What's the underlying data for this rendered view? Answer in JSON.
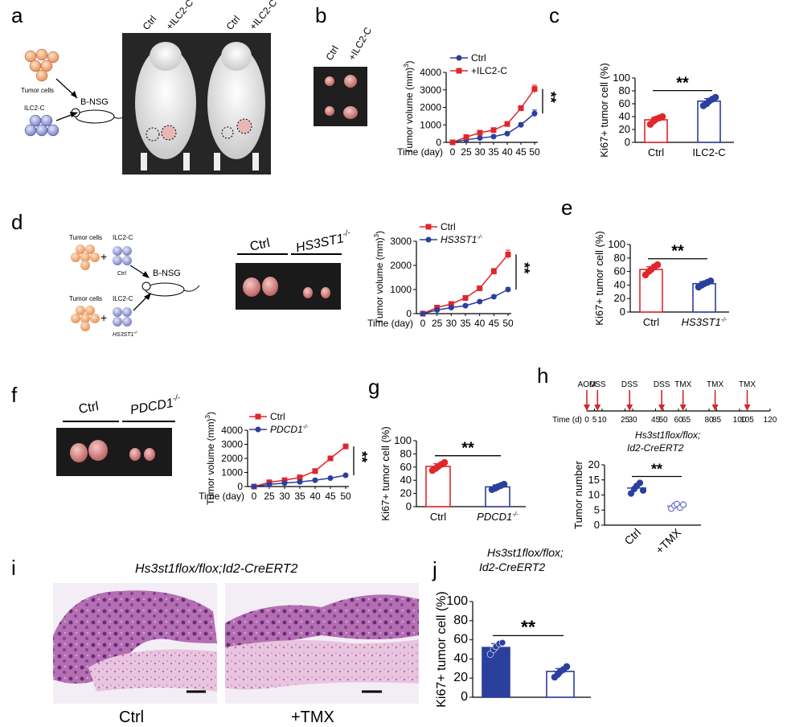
{
  "panels": {
    "a": {
      "letter": "a",
      "schematic": {
        "tumor_cells": "Tumor cells",
        "ilc2": "ILC2-C",
        "host": "B-NSG"
      },
      "photo_labels": [
        "Ctrl",
        "+ILC2-C",
        "Ctrl",
        "+ILC2-C"
      ]
    },
    "b": {
      "letter": "b",
      "photo_labels": [
        "Ctrl",
        "+ILC2-C"
      ]
    },
    "d": {
      "letter": "d",
      "schematic": {
        "tumor_cells_1": "Tumor cells",
        "ilc2_1": "ILC2-C",
        "sub_1": "Ctrl",
        "tumor_cells_2": "Tumor cells",
        "ilc2_2": "ILC2-C",
        "sub_2": "HS3ST1",
        "host": "B-NSG"
      },
      "photo_labels": [
        "Ctrl",
        "HS3ST1"
      ]
    },
    "e": {
      "letter": "e"
    },
    "f": {
      "letter": "f",
      "photo_labels": [
        "Ctrl",
        "PDCD1"
      ]
    },
    "g": {
      "letter": "g"
    },
    "h": {
      "letter": "h",
      "timeline": {
        "axis_label": "Time (d)",
        "ticks": [
          "0",
          "5",
          "10",
          "25",
          "30",
          "45",
          "50",
          "60",
          "65",
          "80",
          "85",
          "100",
          "105",
          "120"
        ],
        "tick_values": [
          0,
          5,
          10,
          25,
          30,
          45,
          50,
          60,
          65,
          80,
          85,
          100,
          105,
          120
        ],
        "events": [
          {
            "label": "AOM",
            "day": 0
          },
          {
            "label": "DSS",
            "day": 7
          },
          {
            "label": "DSS",
            "day": 28
          },
          {
            "label": "DSS",
            "day": 49
          },
          {
            "label": "TMX",
            "day": 63
          },
          {
            "label": "TMX",
            "day": 84
          },
          {
            "label": "TMX",
            "day": 105
          }
        ]
      },
      "genotype": "Hs3st1flox/flox;",
      "genotype_2": "Id2-CreERT2"
    },
    "i": {
      "letter": "i",
      "title": "Hs3st1flox/flox;Id2-CreERT2",
      "captions": [
        "Ctrl",
        "+TMX"
      ]
    },
    "j": {
      "letter": "j",
      "genotype": "Hs3st1flox/flox;",
      "genotype_2": "Id2-CreERT2"
    }
  },
  "chart_data": [
    {
      "id": "b",
      "type": "line",
      "xlabel": "Time (day)",
      "ylabel": "Tumor volume (mm3)",
      "x": [
        0,
        25,
        30,
        35,
        40,
        45,
        50
      ],
      "ylim": [
        0,
        4000
      ],
      "yticks": [
        0,
        1000,
        2000,
        3000,
        4000
      ],
      "series": [
        {
          "name": "Ctrl",
          "color": "#2b3f9e",
          "marker": "circle",
          "values": [
            0,
            150,
            250,
            330,
            500,
            1000,
            1650
          ],
          "err": [
            0,
            40,
            40,
            50,
            60,
            120,
            200
          ]
        },
        {
          "name": "+ILC2-C",
          "color": "#e0262c",
          "marker": "square",
          "values": [
            0,
            300,
            550,
            700,
            1050,
            1950,
            3050
          ],
          "err": [
            0,
            50,
            60,
            80,
            100,
            150,
            220
          ]
        }
      ],
      "significance": "**"
    },
    {
      "id": "c",
      "type": "bar",
      "ylabel": "Ki67+ tumor cell (%)",
      "categories": [
        "Ctrl",
        "ILC2-C"
      ],
      "values": [
        35,
        64
      ],
      "err": [
        4,
        4
      ],
      "points": [
        [
          28,
          33,
          36,
          38,
          40
        ],
        [
          57,
          60,
          64,
          67,
          70
        ]
      ],
      "colors": [
        "#e0262c",
        "#2b3f9e"
      ],
      "ylim": [
        0,
        100
      ],
      "yticks": [
        0,
        20,
        40,
        60,
        80,
        100
      ],
      "significance": "**"
    },
    {
      "id": "d",
      "type": "line",
      "xlabel": "Time (day)",
      "ylabel": "Tumor volume (mm3)",
      "x": [
        0,
        25,
        30,
        35,
        40,
        45,
        50
      ],
      "ylim": [
        0,
        3000
      ],
      "yticks": [
        0,
        1000,
        2000,
        3000
      ],
      "series": [
        {
          "name": "Ctrl",
          "color": "#e0262c",
          "marker": "square",
          "values": [
            0,
            250,
            400,
            650,
            1050,
            1750,
            2450
          ],
          "err": [
            0,
            40,
            50,
            60,
            80,
            120,
            180
          ]
        },
        {
          "name": "HS3ST1",
          "color": "#2b3f9e",
          "marker": "circle",
          "values": [
            0,
            150,
            250,
            330,
            500,
            700,
            1000
          ],
          "err": [
            0,
            30,
            30,
            40,
            50,
            60,
            80
          ]
        }
      ],
      "significance": "**"
    },
    {
      "id": "e",
      "type": "bar",
      "ylabel": "Ki67+ tumor cell (%)",
      "categories": [
        "Ctrl",
        "HS3ST1"
      ],
      "values": [
        63,
        42
      ],
      "err": [
        4,
        3
      ],
      "points": [
        [
          55,
          60,
          63,
          67,
          70
        ],
        [
          37,
          40,
          42,
          44,
          46
        ]
      ],
      "colors": [
        "#e0262c",
        "#2b3f9e"
      ],
      "ylim": [
        0,
        100
      ],
      "yticks": [
        0,
        20,
        40,
        60,
        80,
        100
      ],
      "significance": "**"
    },
    {
      "id": "f",
      "type": "line",
      "xlabel": "Time (day)",
      "ylabel": "Tumor volume (mm3)",
      "x": [
        0,
        25,
        30,
        35,
        40,
        45,
        50
      ],
      "ylim": [
        0,
        4000
      ],
      "yticks": [
        0,
        1000,
        2000,
        3000,
        4000
      ],
      "series": [
        {
          "name": "Ctrl",
          "color": "#e0262c",
          "marker": "square",
          "values": [
            0,
            300,
            450,
            650,
            1100,
            2000,
            2850
          ],
          "err": [
            0,
            40,
            50,
            60,
            80,
            120,
            150
          ]
        },
        {
          "name": "PDCD1",
          "color": "#2b3f9e",
          "marker": "circle",
          "values": [
            0,
            150,
            250,
            330,
            450,
            600,
            800
          ],
          "err": [
            0,
            30,
            30,
            40,
            50,
            60,
            90
          ]
        }
      ],
      "significance": "**"
    },
    {
      "id": "g",
      "type": "bar",
      "ylabel": "Ki67+ tumor cell (%)",
      "categories": [
        "Ctrl",
        "PDCD1"
      ],
      "values": [
        61,
        30
      ],
      "err": [
        4,
        3
      ],
      "points": [
        [
          55,
          58,
          61,
          64,
          67
        ],
        [
          26,
          28,
          30,
          32,
          34
        ]
      ],
      "colors": [
        "#e0262c",
        "#2b3f9e"
      ],
      "ylim": [
        0,
        100
      ],
      "yticks": [
        0,
        20,
        40,
        60,
        80,
        100
      ],
      "significance": "**"
    },
    {
      "id": "h",
      "type": "scatter",
      "ylabel": "Tumor number",
      "categories": [
        "Ctrl",
        "+TMX"
      ],
      "means": [
        12.3,
        6.3
      ],
      "points": [
        [
          10.5,
          12,
          13,
          14,
          11.5
        ],
        [
          5.5,
          6.5,
          7,
          5.8,
          6.8
        ]
      ],
      "colors": [
        "#2b3f9e",
        "#6a6fc9"
      ],
      "ylim": [
        0,
        20
      ],
      "yticks": [
        0,
        5,
        10,
        15,
        20
      ],
      "significance": "**"
    },
    {
      "id": "j",
      "type": "bar",
      "ylabel": "Ki67+ tumor cell (%)",
      "categories": [
        "",
        ""
      ],
      "values": [
        52,
        27
      ],
      "err": [
        4,
        3
      ],
      "points": [
        [
          45,
          50,
          53,
          56,
          57
        ],
        [
          21,
          24,
          27,
          29,
          32
        ]
      ],
      "colors": [
        "#2b3f9e",
        "#2b3f9e"
      ],
      "filled": [
        true,
        false
      ],
      "ylim": [
        0,
        100
      ],
      "yticks": [
        0,
        20,
        40,
        60,
        80,
        100
      ],
      "significance": "**"
    }
  ]
}
